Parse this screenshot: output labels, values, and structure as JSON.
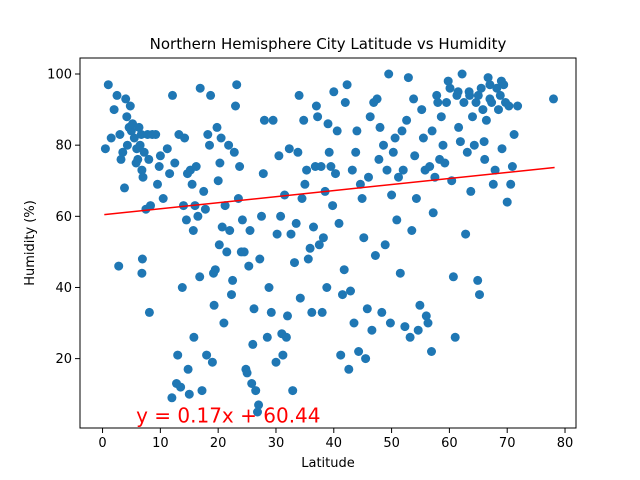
{
  "chart_data": {
    "type": "scatter",
    "title": "Northern Hemisphere City Latitude vs Humidity",
    "xlabel": "Latitude",
    "ylabel": "Humidity (%)",
    "xlim": [
      -3.9,
      81.9
    ],
    "ylim": [
      0.5,
      104.5
    ],
    "xticks": [
      0,
      10,
      20,
      30,
      40,
      50,
      60,
      70,
      80
    ],
    "yticks": [
      20,
      40,
      60,
      80,
      100
    ],
    "grid": false,
    "point_color": "#1f77b4",
    "regression": {
      "slope": 0.17,
      "intercept": 60.44,
      "x_range": [
        0.3,
        78.2
      ],
      "color": "#ff0000",
      "annotation": "y = 0.17x + 60.44",
      "annotation_position": [
        5.8,
        2
      ]
    },
    "points": [
      [
        1,
        97
      ],
      [
        0.5,
        79
      ],
      [
        1.5,
        82
      ],
      [
        2,
        90
      ],
      [
        2.5,
        94
      ],
      [
        3,
        83
      ],
      [
        3.2,
        76
      ],
      [
        3.5,
        78
      ],
      [
        3.8,
        68
      ],
      [
        2.8,
        46
      ],
      [
        4,
        93
      ],
      [
        4.2,
        88
      ],
      [
        4.3,
        80
      ],
      [
        4.6,
        85
      ],
      [
        4.8,
        91
      ],
      [
        5,
        84
      ],
      [
        5.2,
        86
      ],
      [
        5.5,
        82
      ],
      [
        5.8,
        75
      ],
      [
        5.9,
        79
      ],
      [
        6.1,
        76
      ],
      [
        6.3,
        85
      ],
      [
        6.5,
        80
      ],
      [
        6.7,
        83
      ],
      [
        6.8,
        73
      ],
      [
        7,
        71
      ],
      [
        7.2,
        78
      ],
      [
        7.5,
        62
      ],
      [
        6.9,
        48
      ],
      [
        6.8,
        44
      ],
      [
        7.8,
        83
      ],
      [
        8,
        76
      ],
      [
        8.3,
        63
      ],
      [
        8.6,
        83
      ],
      [
        8.1,
        33
      ],
      [
        9.2,
        83
      ],
      [
        9.5,
        69
      ],
      [
        9.8,
        74
      ],
      [
        10,
        77
      ],
      [
        10.5,
        65
      ],
      [
        11.2,
        79
      ],
      [
        11.6,
        72
      ],
      [
        12,
        9
      ],
      [
        12.1,
        94
      ],
      [
        12.5,
        75
      ],
      [
        12.8,
        13
      ],
      [
        13,
        21
      ],
      [
        13.2,
        83
      ],
      [
        13.5,
        12
      ],
      [
        13.8,
        40
      ],
      [
        14,
        63
      ],
      [
        14.2,
        82
      ],
      [
        14.5,
        59
      ],
      [
        14.7,
        72
      ],
      [
        14.8,
        17
      ],
      [
        15,
        10
      ],
      [
        15.2,
        73
      ],
      [
        15.5,
        69
      ],
      [
        15.7,
        56
      ],
      [
        15.8,
        26
      ],
      [
        16,
        63
      ],
      [
        16.2,
        74
      ],
      [
        16.5,
        60
      ],
      [
        16.8,
        43
      ],
      [
        16.9,
        96
      ],
      [
        17.2,
        11
      ],
      [
        17.5,
        67
      ],
      [
        17.8,
        62
      ],
      [
        18,
        21
      ],
      [
        18.2,
        83
      ],
      [
        18.5,
        80
      ],
      [
        18.7,
        94
      ],
      [
        19,
        19
      ],
      [
        19.2,
        44
      ],
      [
        19.3,
        35
      ],
      [
        19.5,
        45
      ],
      [
        19.8,
        85
      ],
      [
        20,
        70
      ],
      [
        20.2,
        52
      ],
      [
        20.3,
        75
      ],
      [
        20.5,
        82
      ],
      [
        20.7,
        57
      ],
      [
        21,
        30
      ],
      [
        21.2,
        63
      ],
      [
        21.5,
        50
      ],
      [
        21.8,
        80
      ],
      [
        22,
        56
      ],
      [
        22.3,
        38
      ],
      [
        22.5,
        42
      ],
      [
        22.8,
        78
      ],
      [
        23,
        91
      ],
      [
        23.2,
        97
      ],
      [
        23.5,
        65
      ],
      [
        23.7,
        74
      ],
      [
        24,
        50
      ],
      [
        24.2,
        59
      ],
      [
        24.5,
        50
      ],
      [
        24.8,
        17
      ],
      [
        25,
        16
      ],
      [
        25.3,
        46
      ],
      [
        25.5,
        56
      ],
      [
        25.8,
        13
      ],
      [
        26,
        24
      ],
      [
        26.2,
        34
      ],
      [
        26.5,
        11
      ],
      [
        26.8,
        5
      ],
      [
        27,
        7
      ],
      [
        27.2,
        48
      ],
      [
        27.5,
        60
      ],
      [
        27.8,
        72
      ],
      [
        28,
        87
      ],
      [
        28.5,
        26
      ],
      [
        28.8,
        40
      ],
      [
        29.2,
        33
      ],
      [
        29.5,
        87
      ],
      [
        30,
        19
      ],
      [
        30.2,
        55
      ],
      [
        30.5,
        77
      ],
      [
        30.8,
        60
      ],
      [
        31,
        27
      ],
      [
        31.2,
        21
      ],
      [
        31.5,
        66
      ],
      [
        31.8,
        26
      ],
      [
        32,
        32
      ],
      [
        32.3,
        79
      ],
      [
        32.6,
        55
      ],
      [
        32.9,
        11
      ],
      [
        33.2,
        47
      ],
      [
        33.5,
        58
      ],
      [
        33.8,
        78
      ],
      [
        34,
        94
      ],
      [
        34.2,
        37
      ],
      [
        34.5,
        65
      ],
      [
        34.8,
        87
      ],
      [
        35,
        69
      ],
      [
        35.3,
        73
      ],
      [
        35.6,
        48
      ],
      [
        35.9,
        51
      ],
      [
        36.2,
        33
      ],
      [
        36.5,
        57
      ],
      [
        36.8,
        74
      ],
      [
        37,
        91
      ],
      [
        37.2,
        88
      ],
      [
        37.5,
        52
      ],
      [
        37.8,
        74
      ],
      [
        38,
        33
      ],
      [
        38.2,
        54
      ],
      [
        38.5,
        67
      ],
      [
        38.8,
        40
      ],
      [
        39,
        86
      ],
      [
        39.2,
        78
      ],
      [
        39.5,
        74
      ],
      [
        39.8,
        63
      ],
      [
        40,
        95
      ],
      [
        40.3,
        72
      ],
      [
        40.6,
        84
      ],
      [
        40.9,
        58
      ],
      [
        41.2,
        21
      ],
      [
        41.5,
        38
      ],
      [
        41.8,
        45
      ],
      [
        42,
        92
      ],
      [
        42.3,
        97
      ],
      [
        42.6,
        17
      ],
      [
        42.9,
        39
      ],
      [
        43.2,
        73
      ],
      [
        43.5,
        30
      ],
      [
        43.8,
        78
      ],
      [
        44,
        84
      ],
      [
        44.3,
        22
      ],
      [
        44.6,
        69
      ],
      [
        44.9,
        65
      ],
      [
        45.2,
        54
      ],
      [
        45.5,
        20
      ],
      [
        45.8,
        34
      ],
      [
        46,
        71
      ],
      [
        46.3,
        88
      ],
      [
        46.6,
        28
      ],
      [
        46.9,
        92
      ],
      [
        47.2,
        49
      ],
      [
        47.5,
        93
      ],
      [
        47.8,
        76
      ],
      [
        48,
        85
      ],
      [
        48.3,
        33
      ],
      [
        48.6,
        80
      ],
      [
        48.9,
        52
      ],
      [
        49.2,
        73
      ],
      [
        49.5,
        100
      ],
      [
        49.8,
        30
      ],
      [
        50,
        66
      ],
      [
        50.3,
        78
      ],
      [
        50.6,
        82
      ],
      [
        50.9,
        59
      ],
      [
        51.2,
        71
      ],
      [
        51.5,
        44
      ],
      [
        51.8,
        84
      ],
      [
        52,
        73
      ],
      [
        52.3,
        29
      ],
      [
        52.6,
        87
      ],
      [
        52.9,
        99
      ],
      [
        53.2,
        26
      ],
      [
        53.5,
        56
      ],
      [
        53.8,
        93
      ],
      [
        54,
        77
      ],
      [
        54.3,
        65
      ],
      [
        54.6,
        28
      ],
      [
        54.9,
        35
      ],
      [
        55.2,
        90
      ],
      [
        55.5,
        82
      ],
      [
        55.8,
        73
      ],
      [
        56,
        32
      ],
      [
        56.3,
        30
      ],
      [
        56.6,
        74
      ],
      [
        56.9,
        22
      ],
      [
        57.2,
        61
      ],
      [
        57.5,
        71
      ],
      [
        57.8,
        94
      ],
      [
        58,
        92
      ],
      [
        58.3,
        76
      ],
      [
        58.6,
        88
      ],
      [
        58.9,
        80
      ],
      [
        59.2,
        75
      ],
      [
        59.5,
        92
      ],
      [
        59.8,
        98
      ],
      [
        60.1,
        96
      ],
      [
        60.4,
        70
      ],
      [
        60.7,
        43
      ],
      [
        61,
        26
      ],
      [
        61.3,
        94
      ],
      [
        61.6,
        85
      ],
      [
        61.9,
        81
      ],
      [
        62.2,
        100
      ],
      [
        62.5,
        92
      ],
      [
        62.8,
        55
      ],
      [
        63.1,
        78
      ],
      [
        63.4,
        95
      ],
      [
        63.7,
        67
      ],
      [
        64,
        88
      ],
      [
        64.3,
        80
      ],
      [
        64.6,
        92
      ],
      [
        64.9,
        42
      ],
      [
        65.2,
        38
      ],
      [
        65.5,
        96
      ],
      [
        65.8,
        90
      ],
      [
        66.1,
        76
      ],
      [
        66.4,
        87
      ],
      [
        66.7,
        99
      ],
      [
        67,
        93
      ],
      [
        67.3,
        92
      ],
      [
        67.6,
        69
      ],
      [
        67.9,
        73
      ],
      [
        68.2,
        96
      ],
      [
        68.5,
        90
      ],
      [
        68.8,
        94
      ],
      [
        69.1,
        79
      ],
      [
        69.4,
        97
      ],
      [
        69.7,
        92
      ],
      [
        70,
        64
      ],
      [
        70.3,
        91
      ],
      [
        70.6,
        69
      ],
      [
        70.9,
        74
      ],
      [
        71.2,
        83
      ],
      [
        71.8,
        91
      ],
      [
        78,
        93
      ],
      [
        66,
        81
      ],
      [
        61.5,
        95
      ],
      [
        63.5,
        94
      ],
      [
        65,
        94
      ],
      [
        67,
        97
      ],
      [
        69,
        98
      ],
      [
        57,
        84
      ]
    ]
  }
}
